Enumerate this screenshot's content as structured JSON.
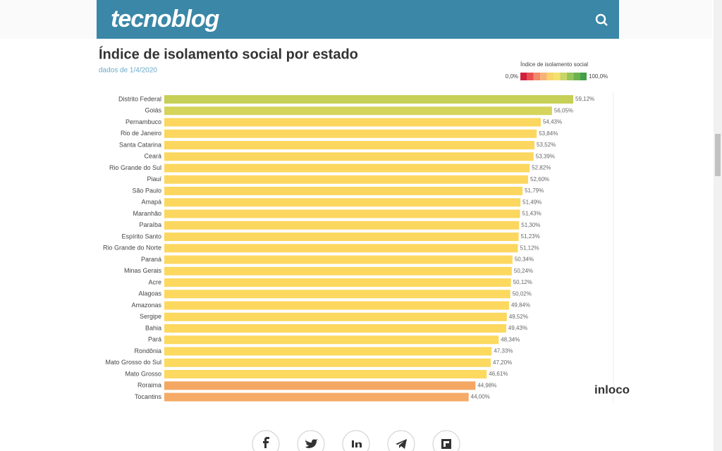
{
  "header": {
    "logo": "tecnoblog"
  },
  "chart_data": {
    "type": "bar",
    "orientation": "horizontal",
    "title": "Índice de isolamento social por estado",
    "subtitle": "dados de 1/4/2020",
    "categories": [
      "Distrito Federal",
      "Goiás",
      "Pernambuco",
      "Rio de Janeiro",
      "Santa Catarina",
      "Ceará",
      "Rio Grande do Sul",
      "Piauí",
      "São Paulo",
      "Amapá",
      "Maranhão",
      "Paraíba",
      "Espírito Santo",
      "Rio Grande do Norte",
      "Paraná",
      "Minas Gerais",
      "Acre",
      "Alagoas",
      "Amazonas",
      "Sergipe",
      "Bahia",
      "Pará",
      "Rondônia",
      "Mato Grosso do Sul",
      "Mato Grosso",
      "Roraima",
      "Tocantins"
    ],
    "values": [
      59.12,
      56.05,
      54.43,
      53.84,
      53.52,
      53.39,
      52.82,
      52.6,
      51.79,
      51.49,
      51.43,
      51.3,
      51.23,
      51.12,
      50.34,
      50.24,
      50.12,
      50.02,
      49.84,
      49.52,
      49.43,
      48.34,
      47.33,
      47.2,
      46.61,
      44.98,
      44.0
    ],
    "value_labels": [
      "59,12%",
      "56,05%",
      "54,43%",
      "53,84%",
      "53,52%",
      "53,39%",
      "52,82%",
      "52,60%",
      "51,79%",
      "51,49%",
      "51,43%",
      "51,30%",
      "51,23%",
      "51,12%",
      "50,34%",
      "50,24%",
      "50,12%",
      "50,02%",
      "49,84%",
      "49,52%",
      "49,43%",
      "48,34%",
      "47,33%",
      "47,20%",
      "46,61%",
      "44,98%",
      "44,00%"
    ],
    "colors": [
      "#c6cf56",
      "#d5d45b",
      "#fcd75f",
      "#fcd75f",
      "#fcd75f",
      "#fcd75f",
      "#fcd75f",
      "#fcd75f",
      "#fcd75f",
      "#fcd75f",
      "#fcd75f",
      "#fcd75f",
      "#fcd75f",
      "#fcd75f",
      "#fcd85f",
      "#fcd85f",
      "#fcd85f",
      "#fcd85f",
      "#fcd85f",
      "#fcd85f",
      "#fcd85f",
      "#fcd95f",
      "#fcd95f",
      "#fcd95f",
      "#fcd95f",
      "#f4a762",
      "#f5aa66"
    ],
    "legend": {
      "title": "Índice de isolamento social",
      "min_label": "0,0%",
      "max_label": "100,0%",
      "colors": [
        "#d0213c",
        "#e8504f",
        "#f38a6a",
        "#f7b376",
        "#f9d36b",
        "#f3e26d",
        "#c9d666",
        "#98c55a",
        "#6cb350",
        "#43a047"
      ]
    },
    "brand": "inloco"
  }
}
